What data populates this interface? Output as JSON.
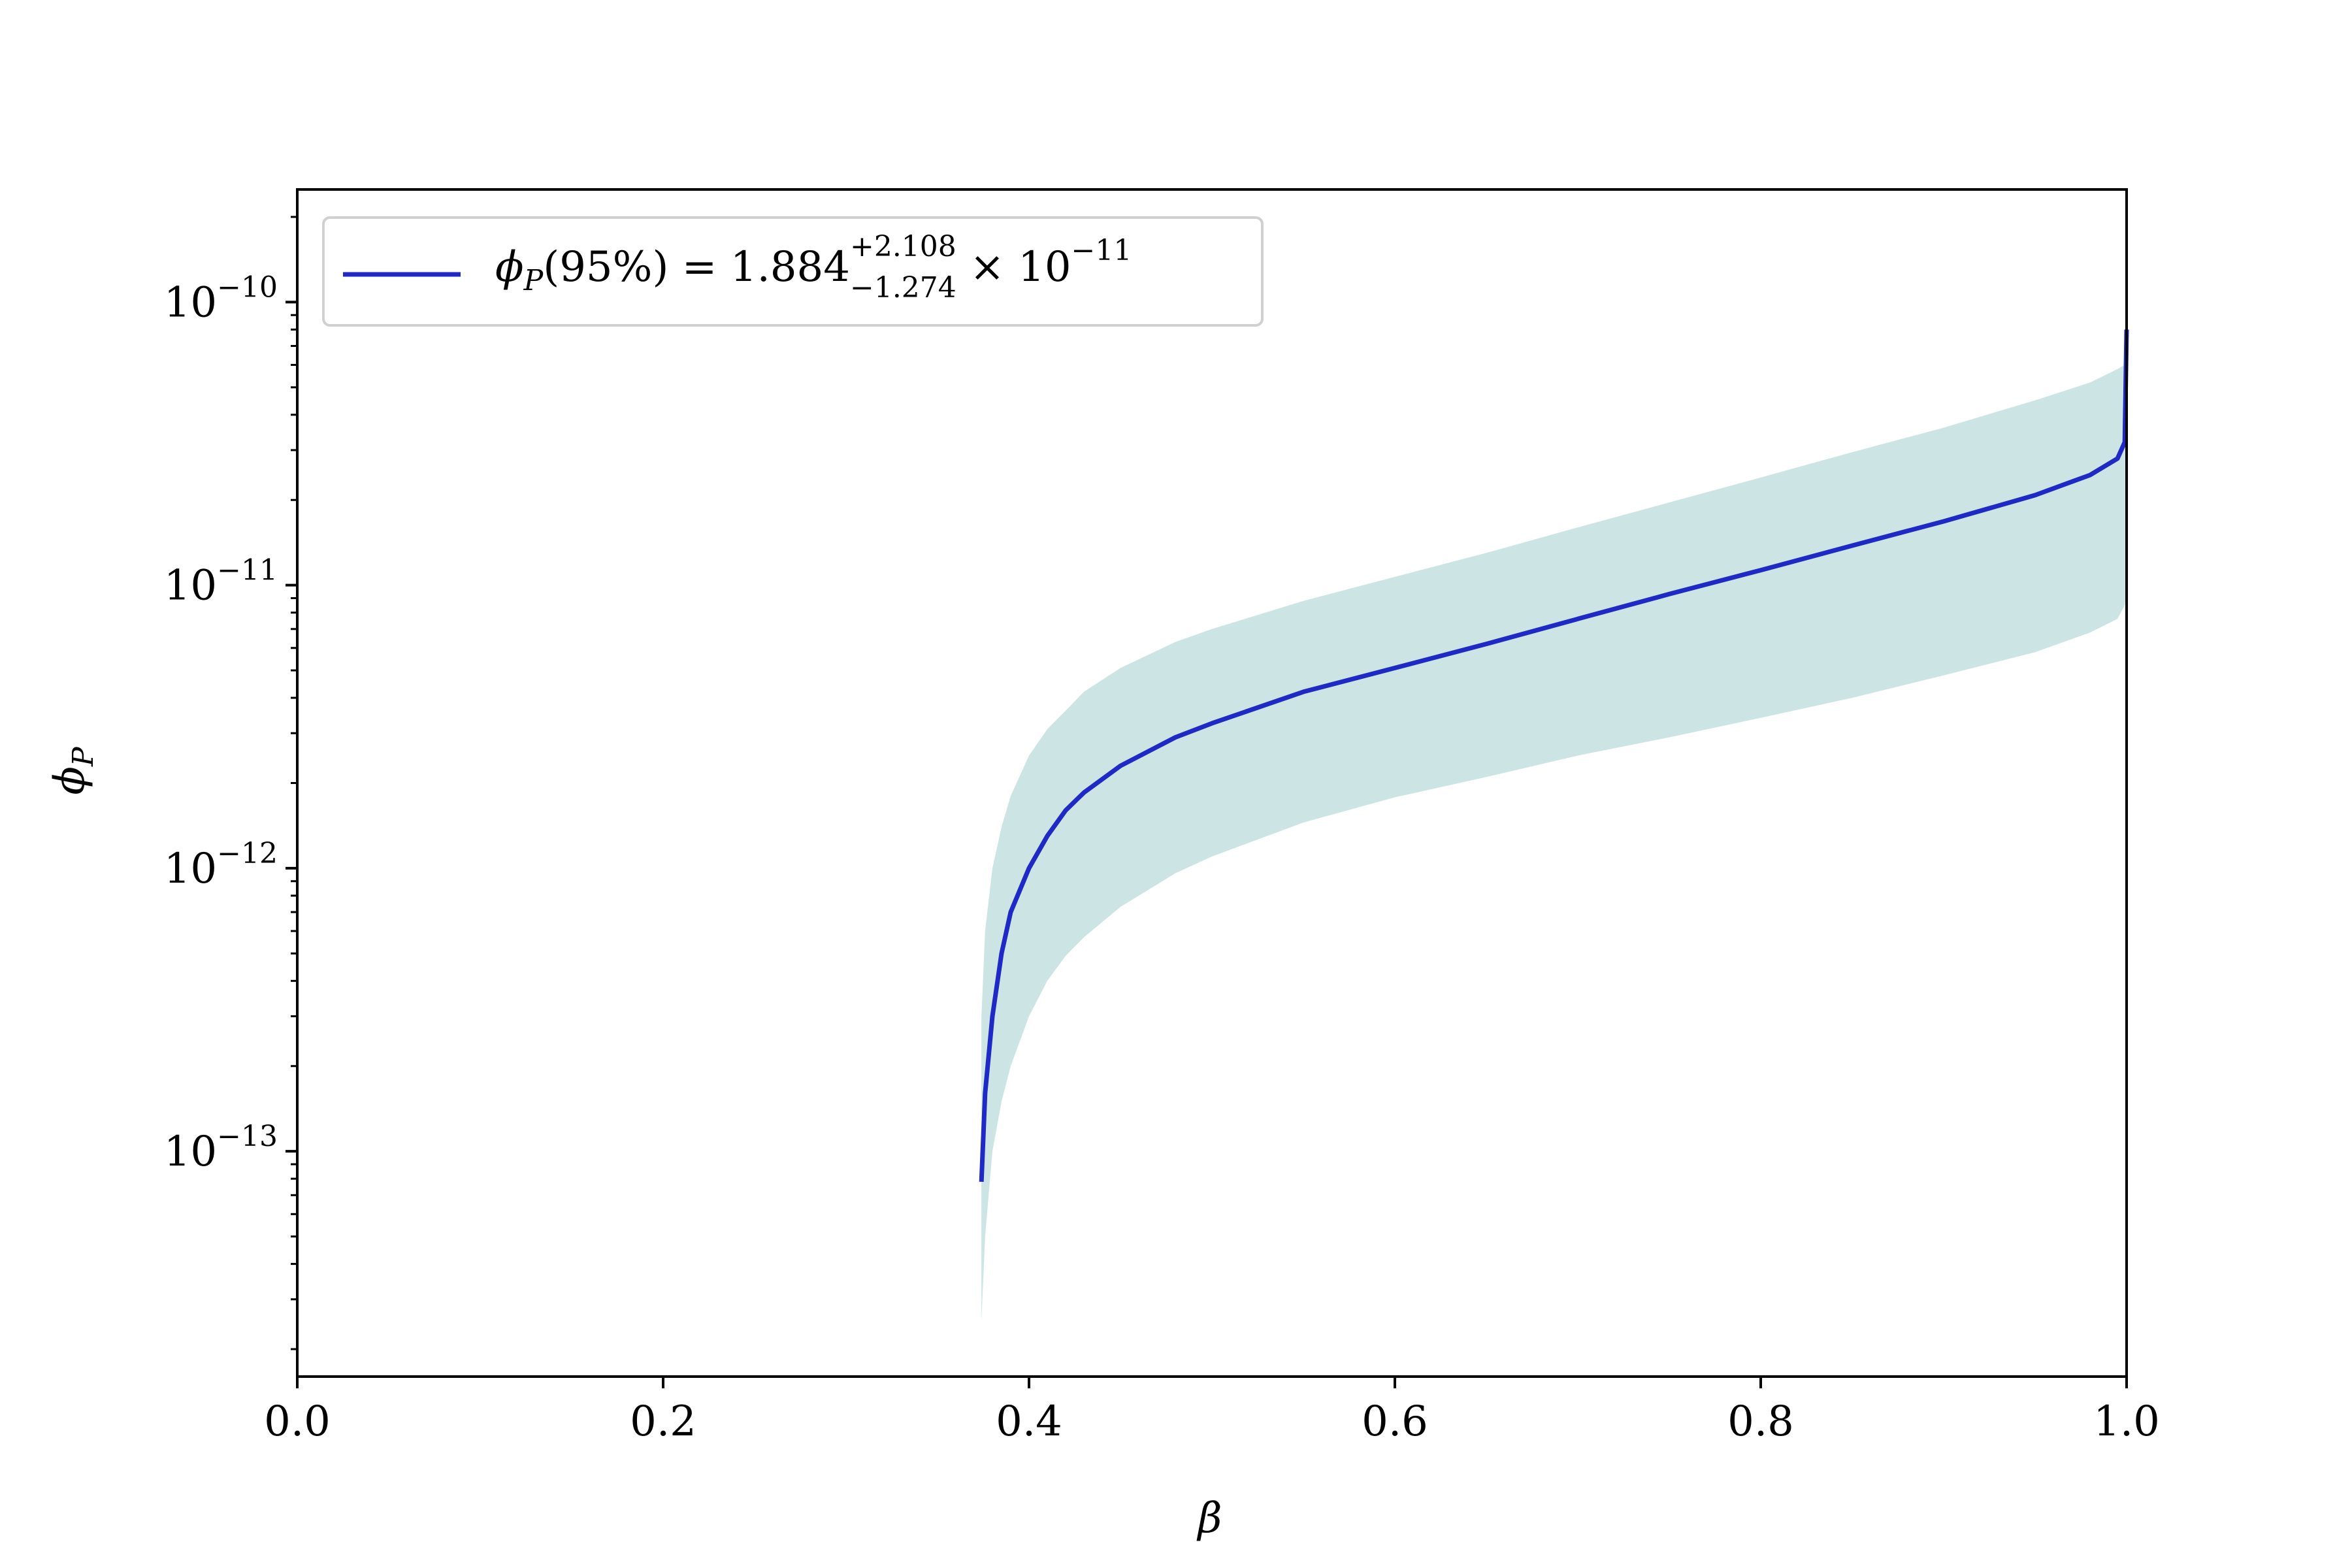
{
  "chart_data": {
    "type": "line",
    "xlabel": "β",
    "ylabel": "ϕ",
    "ylabel_sub": "P",
    "xlim": [
      0.0,
      1.0
    ],
    "ylim": [
      1.6e-14,
      2.5e-10
    ],
    "yscale": "log",
    "grid": false,
    "legend_position": "top-left",
    "x_ticks": [
      {
        "value": 0.0,
        "label": "0.0"
      },
      {
        "value": 0.2,
        "label": "0.2"
      },
      {
        "value": 0.4,
        "label": "0.4"
      },
      {
        "value": 0.6,
        "label": "0.6"
      },
      {
        "value": 0.8,
        "label": "0.8"
      },
      {
        "value": 1.0,
        "label": "1.0"
      }
    ],
    "y_ticks": [
      {
        "value": 1e-13,
        "base": "10",
        "exp": "−13"
      },
      {
        "value": 1e-12,
        "base": "10",
        "exp": "−12"
      },
      {
        "value": 1e-11,
        "base": "10",
        "exp": "−11"
      },
      {
        "value": 1e-10,
        "base": "10",
        "exp": "−10"
      }
    ],
    "legend": {
      "prefix": "ϕ",
      "prefix_sub": "P",
      "main": "(95%) = 1.884",
      "sup": "+2.108",
      "sub": "−1.274",
      "suffix": " × 10",
      "suffix_exp": "−11"
    },
    "colors": {
      "line": "#1f2ac6",
      "band": "#cce5e4",
      "axes": "#000000"
    },
    "x": [
      0.374,
      0.376,
      0.38,
      0.385,
      0.39,
      0.4,
      0.41,
      0.42,
      0.43,
      0.45,
      0.48,
      0.5,
      0.55,
      0.6,
      0.65,
      0.7,
      0.75,
      0.8,
      0.85,
      0.9,
      0.95,
      0.98,
      0.995,
      0.999,
      1.0
    ],
    "series": [
      {
        "name": "ϕ_P(95%)",
        "role": "median",
        "values": [
          7.8e-14,
          1.6e-13,
          3e-13,
          5e-13,
          7e-13,
          1e-12,
          1.3e-12,
          1.6e-12,
          1.85e-12,
          2.3e-12,
          2.9e-12,
          3.25e-12,
          4.2e-12,
          5.1e-12,
          6.2e-12,
          7.6e-12,
          9.3e-12,
          1.13e-11,
          1.38e-11,
          1.68e-11,
          2.08e-11,
          2.45e-11,
          2.8e-11,
          3.2e-11,
          8e-11
        ]
      },
      {
        "role": "upper",
        "values": [
          3e-13,
          6e-13,
          1e-12,
          1.4e-12,
          1.8e-12,
          2.5e-12,
          3.1e-12,
          3.6e-12,
          4.2e-12,
          5.1e-12,
          6.3e-12,
          7e-12,
          8.8e-12,
          1.07e-11,
          1.3e-11,
          1.6e-11,
          1.96e-11,
          2.4e-11,
          2.95e-11,
          3.6e-11,
          4.5e-11,
          5.2e-11,
          5.8e-11,
          6e-11,
          6e-11
        ]
      },
      {
        "role": "lower",
        "values": [
          2.5e-14,
          5e-14,
          1e-13,
          1.5e-13,
          2e-13,
          3e-13,
          4e-13,
          4.9e-13,
          5.7e-13,
          7.3e-13,
          9.6e-13,
          1.1e-12,
          1.45e-12,
          1.78e-12,
          2.1e-12,
          2.5e-12,
          2.9e-12,
          3.4e-12,
          4e-12,
          4.8e-12,
          5.8e-12,
          6.8e-12,
          7.6e-12,
          8.5e-12,
          9.5e-12
        ]
      }
    ]
  }
}
